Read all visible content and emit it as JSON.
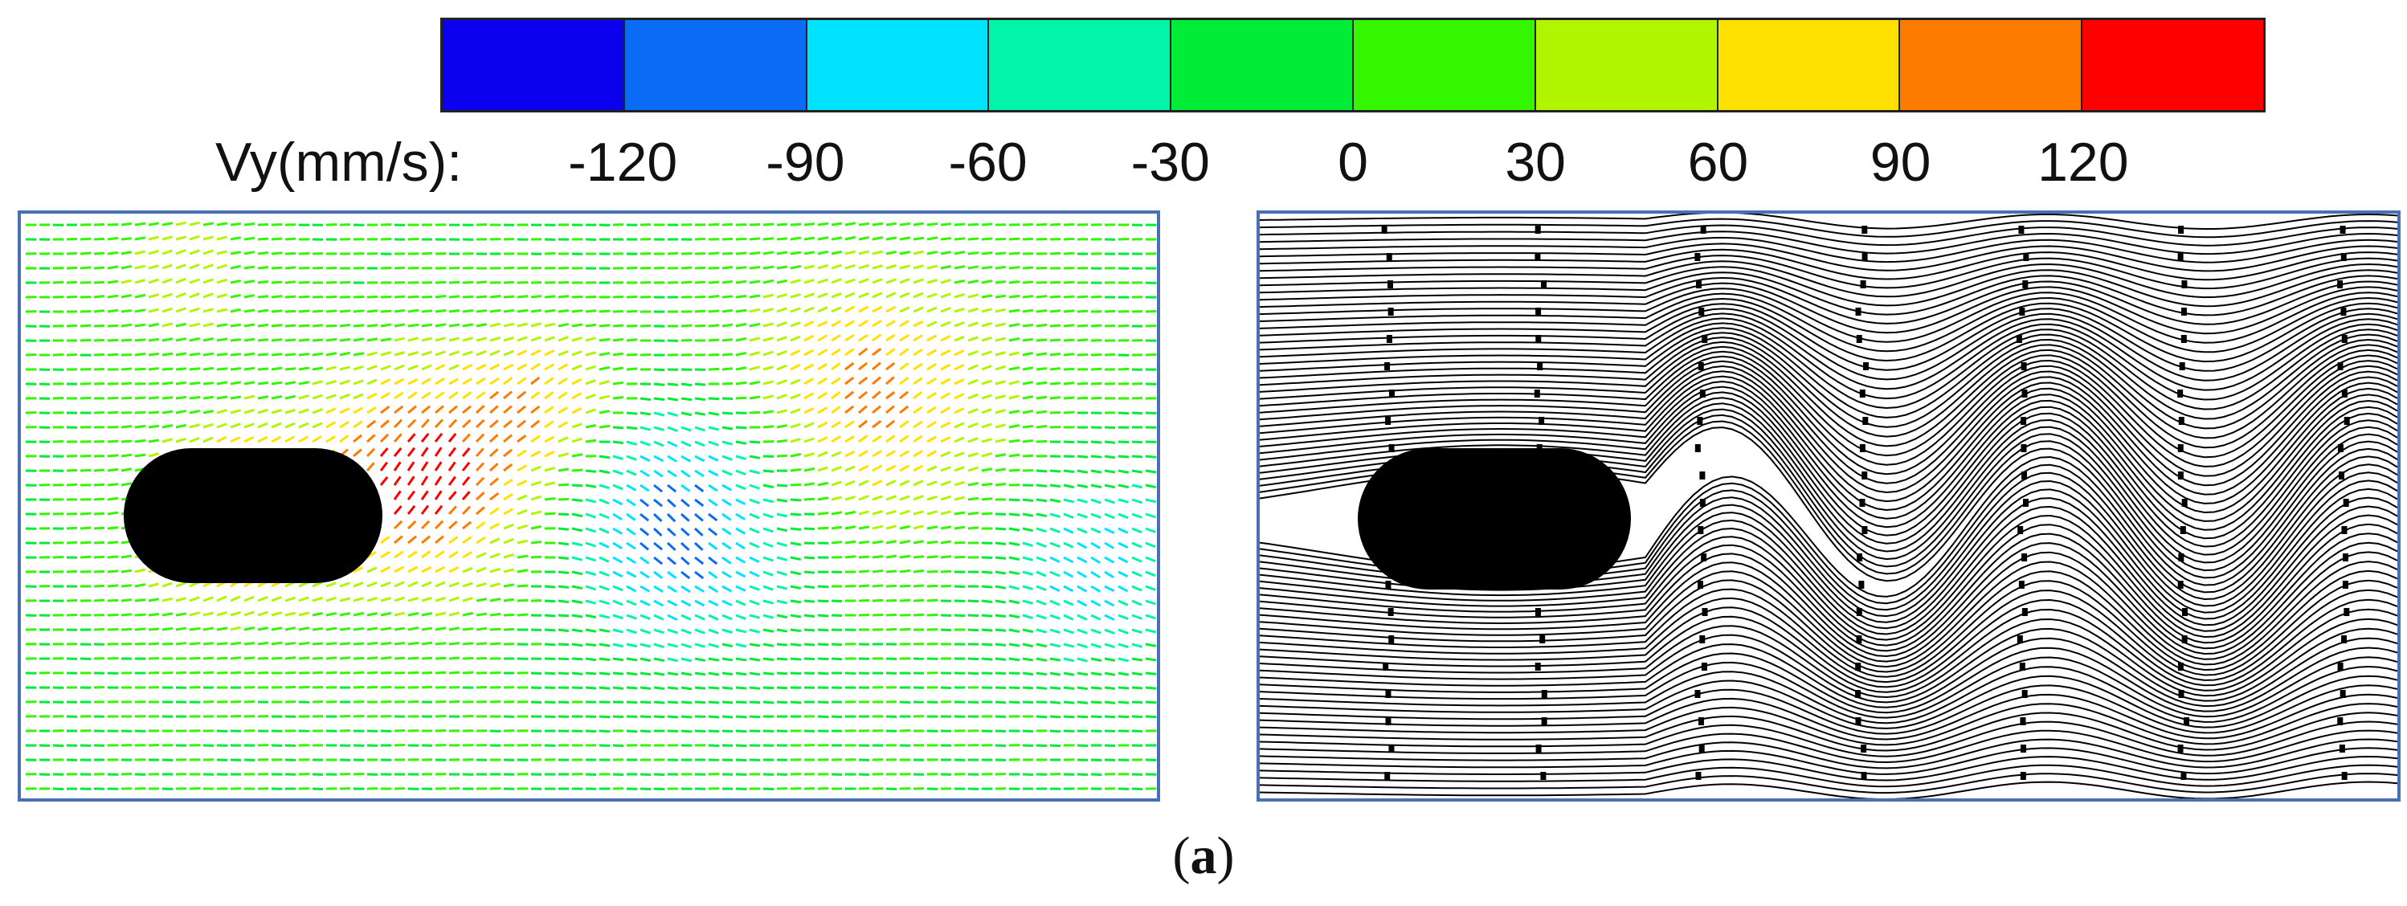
{
  "colorbar": {
    "title": "Vy(mm/s):",
    "colors": [
      "#0a00ee",
      "#0a6cf5",
      "#00e3ff",
      "#00f5a8",
      "#00ec36",
      "#33f600",
      "#b2f500",
      "#ffe100",
      "#ff7b00",
      "#ff0000"
    ],
    "tick_labels": [
      "-120",
      "-90",
      "-60",
      "-30",
      "0",
      "30",
      "60",
      "90",
      "120"
    ]
  },
  "left_panel": {
    "description_color_field": "#00dd33",
    "obstacle_color": "#000000",
    "border_color": "#4a6fb5"
  },
  "right_panel": {
    "line_color": "#000000",
    "obstacle_color": "#000000",
    "border_color": "#4a6fb5"
  },
  "caption": {
    "open": "(",
    "letter": "a",
    "close": ")"
  }
}
